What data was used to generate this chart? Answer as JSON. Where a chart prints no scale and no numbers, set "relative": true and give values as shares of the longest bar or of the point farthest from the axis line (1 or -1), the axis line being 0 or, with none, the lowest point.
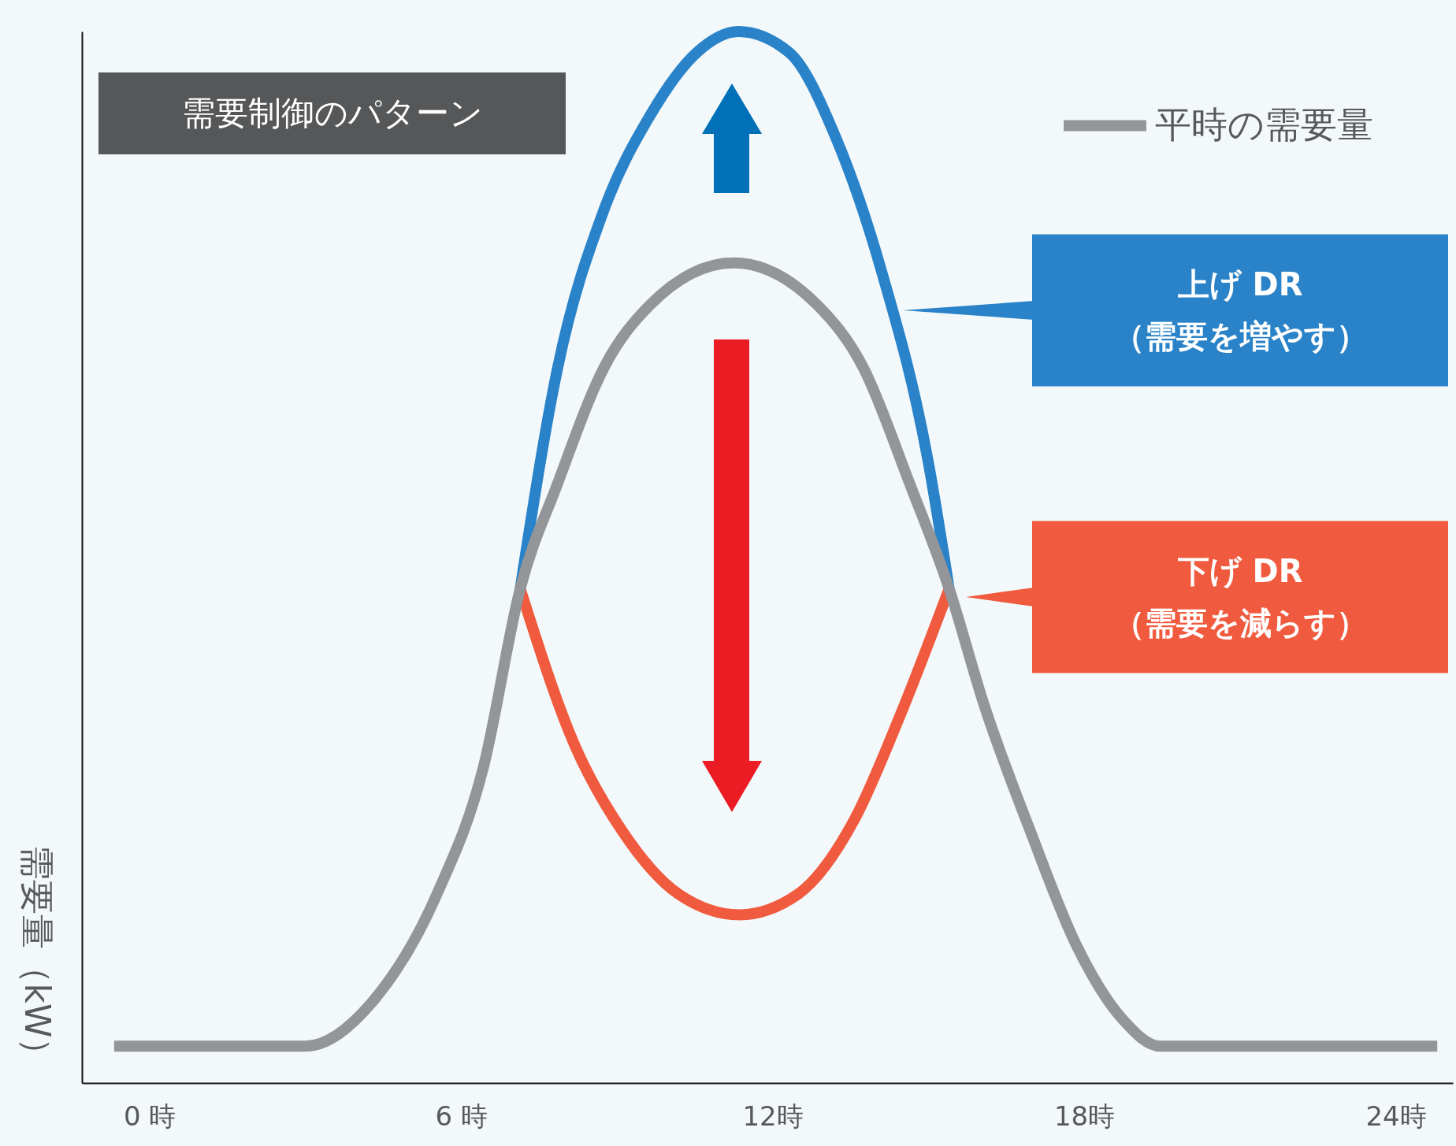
{
  "chart_data": {
    "type": "line",
    "relative": true,
    "title": "需要制御のパターン",
    "ylabel": "需要量（kW）",
    "legend": "top right",
    "xlim": [
      -1.3,
      25.1
    ],
    "xticks": [
      {
        "value": 0,
        "label": "0 時"
      },
      {
        "value": 6,
        "label": "6 時"
      },
      {
        "value": 12,
        "label": "12時"
      },
      {
        "value": 18,
        "label": "18時"
      },
      {
        "value": 24,
        "label": "24時"
      }
    ],
    "series": [
      {
        "color": "#2a83c8",
        "x": [
          7.14,
          7.86,
          8.75,
          9.64,
          10.54,
          11.34,
          12.32,
          13.21,
          14.11,
          15.0,
          15.4
        ],
        "values": [
          0.47,
          0.68,
          0.83,
          0.92,
          0.98,
          1.0,
          0.98,
          0.9,
          0.77,
          0.59,
          0.47
        ]
      },
      {
        "color": "#f05a3e",
        "x": [
          7.14,
          8.2,
          9.1,
          10.18,
          11.36,
          12.5,
          13.57,
          14.46,
          15.4
        ],
        "values": [
          0.47,
          0.32,
          0.24,
          0.18,
          0.16,
          0.18,
          0.25,
          0.35,
          0.47
        ]
      },
      {
        "name": "平時の需要量",
        "color": "#939598",
        "x": [
          -0.68,
          3.0,
          4.29,
          5.54,
          6.43,
          7.14,
          7.86,
          8.75,
          9.64,
          11.25,
          12.86,
          13.75,
          14.64,
          15.4,
          16.07,
          16.96,
          17.86,
          18.75,
          19.46,
          24.8
        ],
        "values": [
          0.035,
          0.035,
          0.077,
          0.18,
          0.3,
          0.47,
          0.57,
          0.68,
          0.74,
          0.78,
          0.74,
          0.68,
          0.57,
          0.47,
          0.36,
          0.24,
          0.13,
          0.06,
          0.035,
          0.035
        ]
      }
    ],
    "annotations": [
      "上げ DR\n（需要を増やす）",
      "下げ DR\n（需要を減らす）"
    ]
  }
}
